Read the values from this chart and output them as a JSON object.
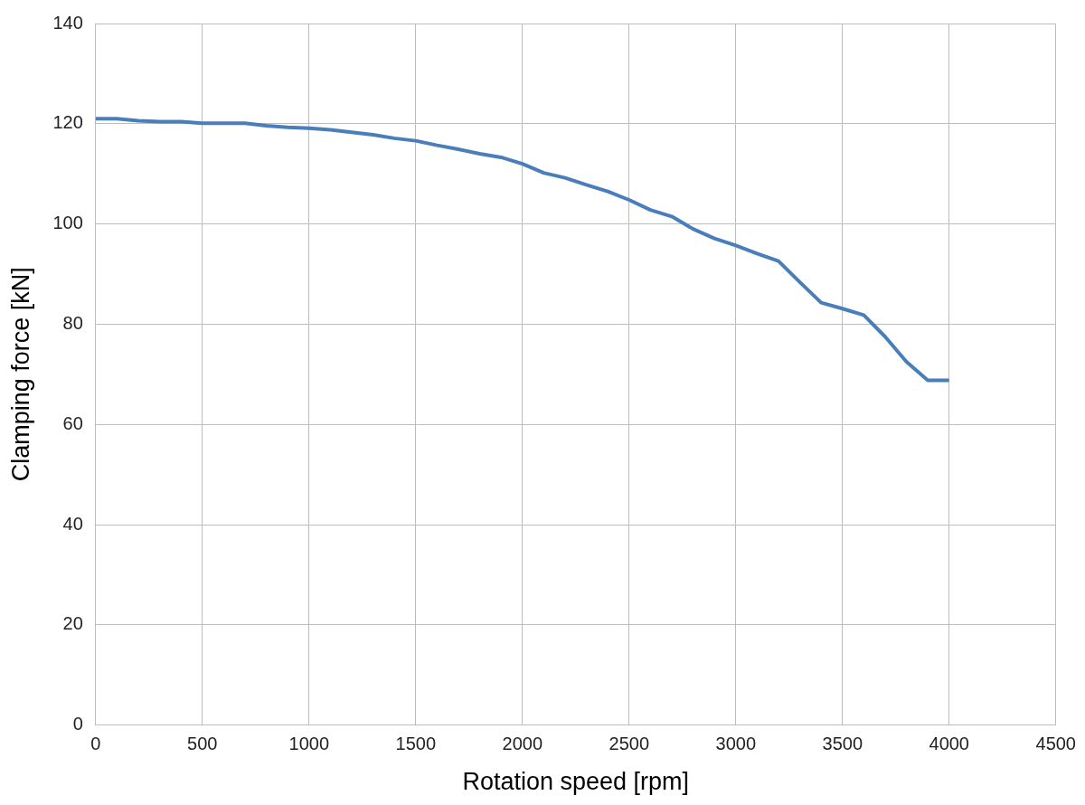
{
  "chart_data": {
    "type": "line",
    "xlabel": "Rotation speed [rpm]",
    "ylabel": "Clamping force [kN]",
    "x": [
      0,
      100,
      200,
      300,
      400,
      500,
      600,
      700,
      800,
      900,
      1000,
      1100,
      1200,
      1300,
      1400,
      1500,
      1600,
      1700,
      1800,
      1900,
      2000,
      2100,
      2200,
      2300,
      2400,
      2500,
      2600,
      2700,
      2800,
      2900,
      3000,
      3100,
      3200,
      3300,
      3400,
      3500,
      3600,
      3700,
      3800,
      3900,
      4000
    ],
    "series": [
      {
        "color": "#4a7ebb",
        "values": [
          121,
          121,
          120.6,
          120.4,
          120.4,
          120.1,
          120.1,
          120.1,
          119.6,
          119.3,
          119.1,
          118.8,
          118.3,
          117.8,
          117.1,
          116.6,
          115.7,
          114.9,
          114,
          113.3,
          112,
          110.2,
          109.2,
          107.8,
          106.5,
          104.8,
          102.8,
          101.5,
          99,
          97.1,
          95.7,
          94.1,
          92.6,
          88.4,
          84.3,
          83.1,
          81.8,
          77.5,
          72.5,
          68.8,
          68.8
        ]
      }
    ],
    "xlim": [
      0,
      4500
    ],
    "xticks": [
      0,
      500,
      1000,
      1500,
      2000,
      2500,
      3000,
      3500,
      4000,
      4500
    ],
    "ylim": [
      0,
      140
    ],
    "yticks": [
      0,
      20,
      40,
      60,
      80,
      100,
      120,
      140
    ],
    "grid": true,
    "legend": false,
    "marker": "none",
    "line_style": "solid"
  }
}
